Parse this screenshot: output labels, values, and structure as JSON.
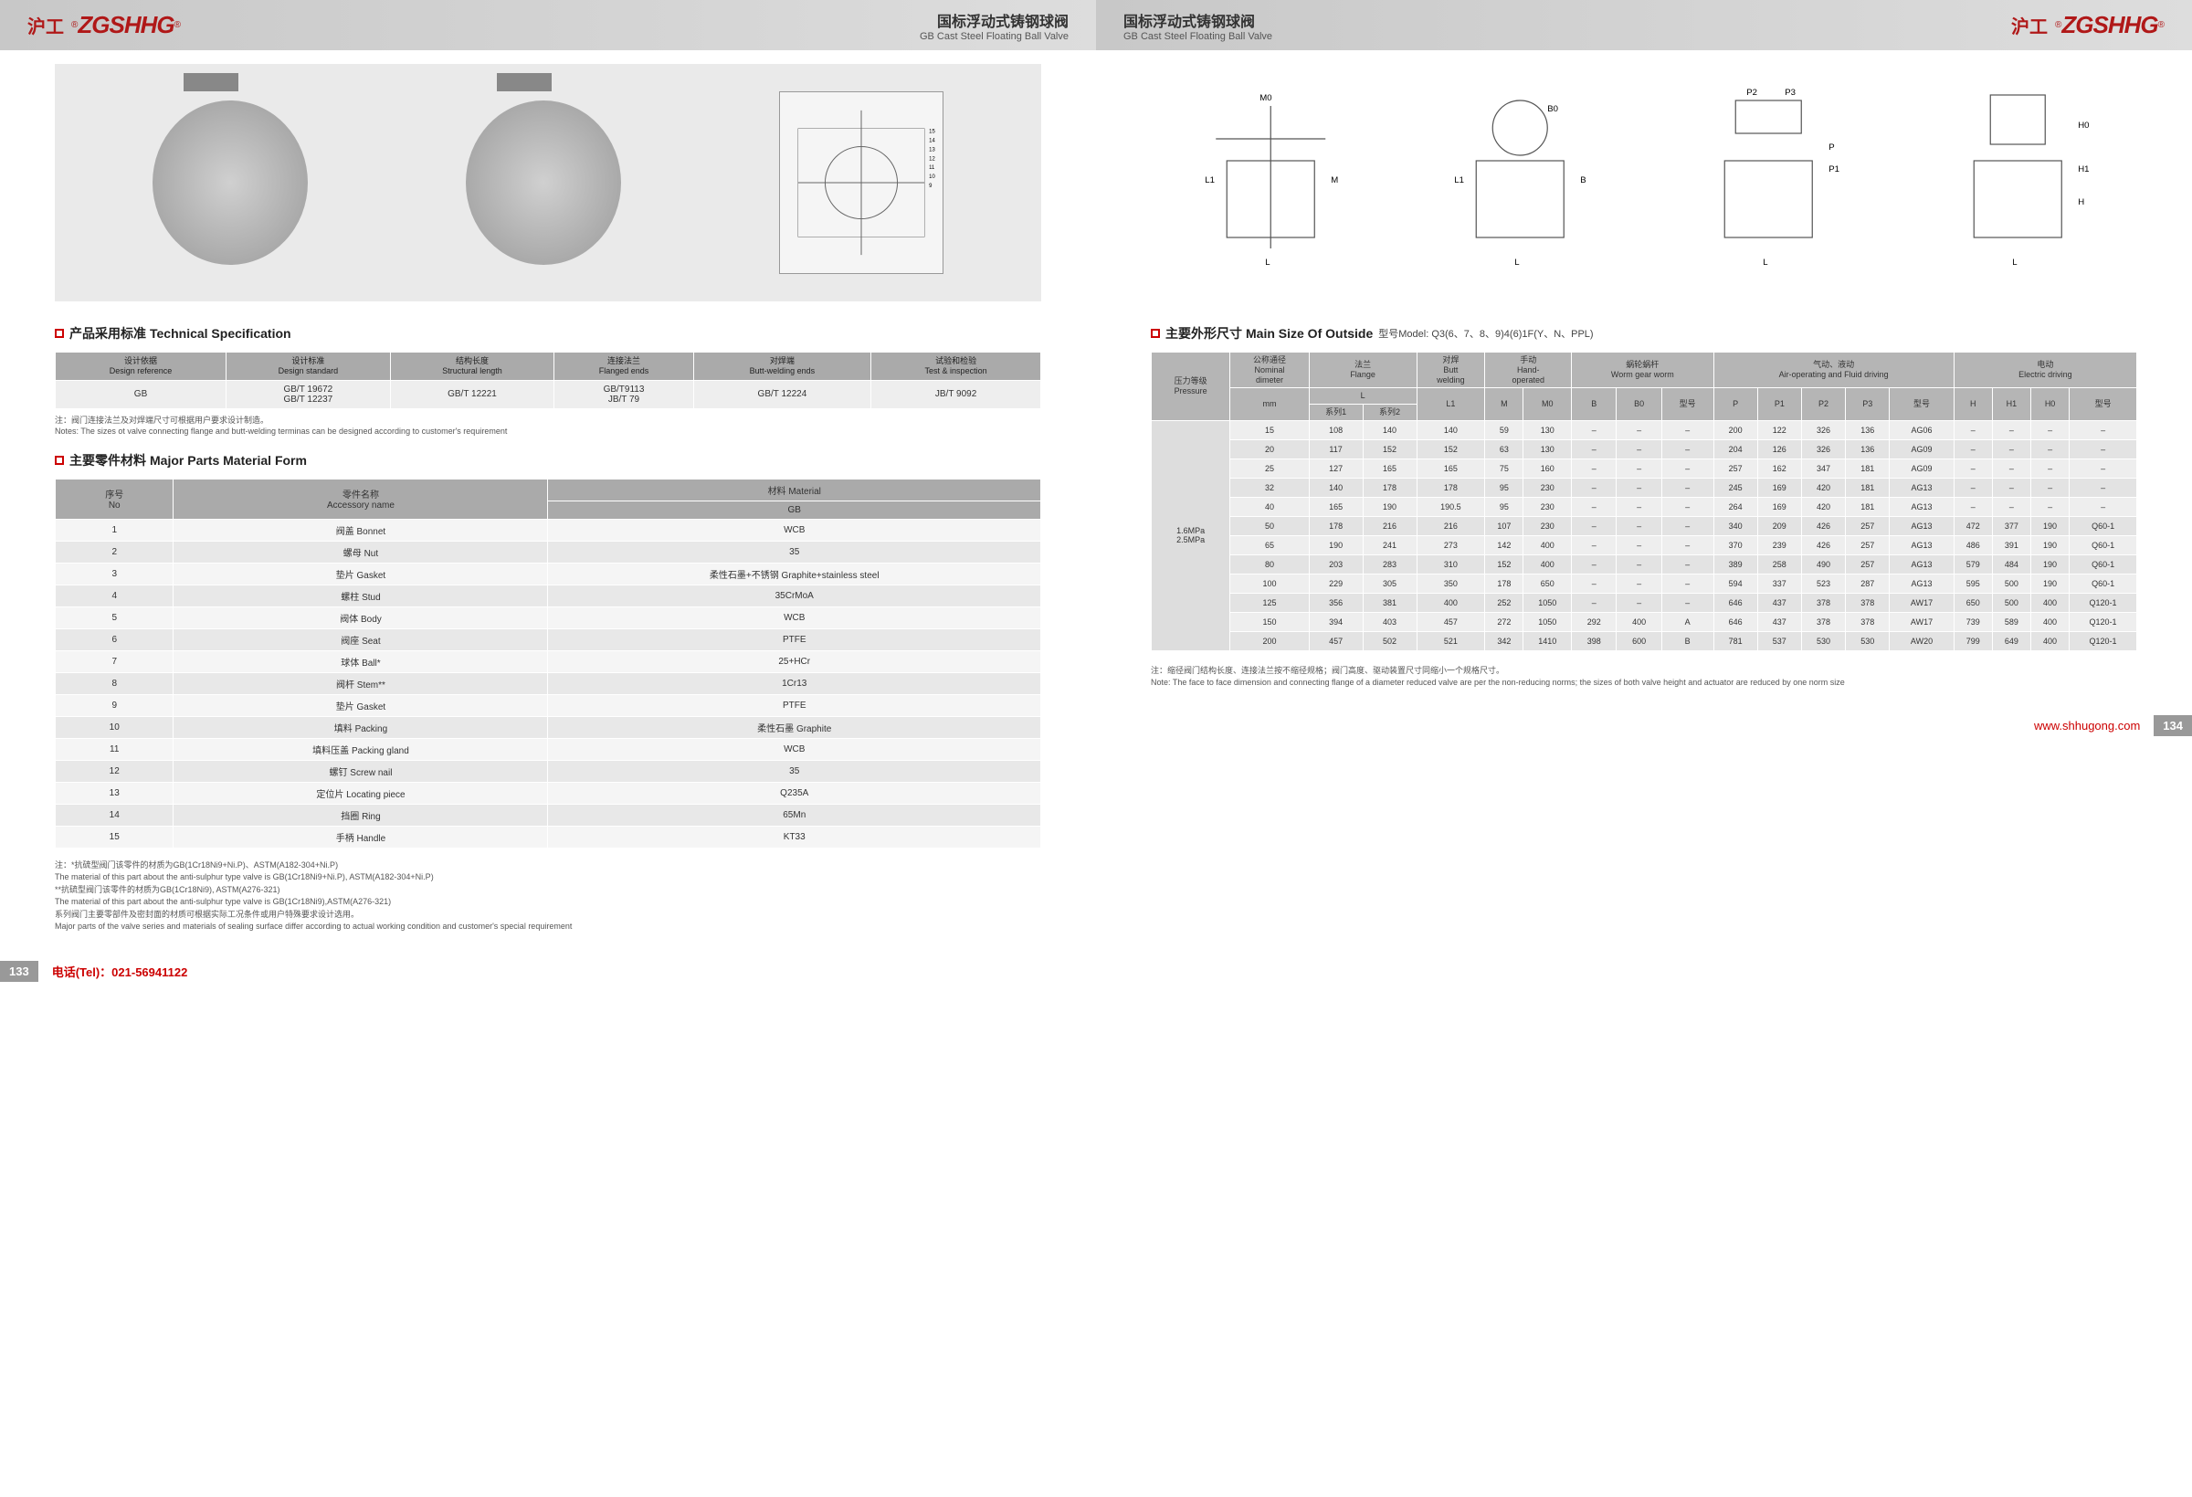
{
  "brand_cn": "沪工",
  "brand_en": "ZGSHHG",
  "product_title_cn": "国标浮动式铸钢球阀",
  "product_title_en": "GB Cast Steel Floating Ball Valve",
  "page_left_num": "133",
  "page_right_num": "134",
  "tel_label": "电话(Tel)：021-56941122",
  "website": "www.shhugong.com",
  "sect1_cn": "产品采用标准",
  "sect1_en": "Technical Specification",
  "spec_headers": [
    {
      "cn": "设计依据",
      "en": "Design reference"
    },
    {
      "cn": "设计标准",
      "en": "Design standard"
    },
    {
      "cn": "结构长度",
      "en": "Structural length"
    },
    {
      "cn": "连接法兰",
      "en": "Flanged ends"
    },
    {
      "cn": "对焊端",
      "en": "Butt-welding ends"
    },
    {
      "cn": "试验和检验",
      "en": "Test & inspection"
    }
  ],
  "spec_row": [
    "GB",
    "GB/T 19672\nGB/T 12237",
    "GB/T 12221",
    "GB/T9113\nJB/T 79",
    "GB/T 12224",
    "JB/T 9092"
  ],
  "spec_note_cn": "注：阀门连接法兰及对焊端尺寸可根据用户要求设计制造。",
  "spec_note_en": "Notes: The sizes ot valve connecting flange and butt-welding terminas can be designed according to customer's requirement",
  "sect2_cn": "主要零件材料",
  "sect2_en": "Major Parts Material Form",
  "parts_h1": "序号\nNo",
  "parts_h2": "零件名称\nAccessory name",
  "parts_h3": "材料 Material",
  "parts_h3b": "GB",
  "parts": [
    [
      "1",
      "阀盖 Bonnet",
      "WCB"
    ],
    [
      "2",
      "螺母 Nut",
      "35"
    ],
    [
      "3",
      "垫片 Gasket",
      "柔性石墨+不锈钢 Graphite+stainless steel"
    ],
    [
      "4",
      "螺柱 Stud",
      "35CrMoA"
    ],
    [
      "5",
      "阀体 Body",
      "WCB"
    ],
    [
      "6",
      "阀座 Seat",
      "PTFE"
    ],
    [
      "7",
      "球体 Ball*",
      "25+HCr"
    ],
    [
      "8",
      "阀杆 Stem**",
      "1Cr13"
    ],
    [
      "9",
      "垫片 Gasket",
      "PTFE"
    ],
    [
      "10",
      "填料 Packing",
      "柔性石墨 Graphite"
    ],
    [
      "11",
      "填料压盖 Packing gland",
      "WCB"
    ],
    [
      "12",
      "螺钉 Screw nail",
      "35"
    ],
    [
      "13",
      "定位片 Locating piece",
      "Q235A"
    ],
    [
      "14",
      "挡圈 Ring",
      "65Mn"
    ],
    [
      "15",
      "手柄 Handle",
      "KT33"
    ]
  ],
  "footnote1": "注：*抗硫型阀门该零件的材质为GB(1Cr18Ni9+Ni.P)、ASTM(A182-304+Ni.P)",
  "footnote2": "The material of this part about the anti-sulphur type valve is GB(1Cr18Ni9+Ni.P), ASTM(A182-304+Ni.P)",
  "footnote3": "**抗硫型阀门该零件的材质为GB(1Cr18Ni9), ASTM(A276-321)",
  "footnote4": "The material of this part about the anti-sulphur type valve is GB(1Cr18Ni9),ASTM(A276-321)",
  "footnote5": "系列阀门主要零部件及密封面的材质可根据实际工况条件或用户特殊要求设计选用。",
  "footnote6": "Major parts of the valve series and materials of sealing surface differ according to actual working condition and customer's special requirement",
  "sect3_cn": "主要外形尺寸",
  "sect3_en": "Main Size Of Outside",
  "sect3_model": "型号Model: Q3(6、7、8、9)4(6)1F(Y、N、PPL)",
  "size_h_pressure": "压力等级\nPressure",
  "size_h_dn": "公称通径\nNominal\ndimeter",
  "size_h_flange": "法兰\nFlange",
  "size_h_butt": "对焊\nButt\nwelding",
  "size_h_hand": "手动\nHand-\noperated",
  "size_h_worm": "蜗轮蜗杆\nWorm gear worm",
  "size_h_air": "气动、液动\nAir-operating and Fluid driving",
  "size_h_elec": "电动\nElectric driving",
  "size_sub_mm": "mm",
  "size_sub_L": "L",
  "size_sub_s1": "系列1",
  "size_sub_s2": "系列2",
  "size_sub_L1": "L1",
  "size_sub_M": "M",
  "size_sub_M0": "M0",
  "size_sub_B": "B",
  "size_sub_B0": "B0",
  "size_sub_model": "型号",
  "size_sub_P": "P",
  "size_sub_P1": "P1",
  "size_sub_P2": "P2",
  "size_sub_P3": "P3",
  "size_sub_H": "H",
  "size_sub_H1": "H1",
  "size_sub_H0": "H0",
  "pressure_val": "1.6MPa\n2.5MPa",
  "size_rows": [
    [
      "15",
      "108",
      "140",
      "140",
      "59",
      "130",
      "–",
      "–",
      "–",
      "200",
      "122",
      "326",
      "136",
      "AG06",
      "–",
      "–",
      "–",
      "–"
    ],
    [
      "20",
      "117",
      "152",
      "152",
      "63",
      "130",
      "–",
      "–",
      "–",
      "204",
      "126",
      "326",
      "136",
      "AG09",
      "–",
      "–",
      "–",
      "–"
    ],
    [
      "25",
      "127",
      "165",
      "165",
      "75",
      "160",
      "–",
      "–",
      "–",
      "257",
      "162",
      "347",
      "181",
      "AG09",
      "–",
      "–",
      "–",
      "–"
    ],
    [
      "32",
      "140",
      "178",
      "178",
      "95",
      "230",
      "–",
      "–",
      "–",
      "245",
      "169",
      "420",
      "181",
      "AG13",
      "–",
      "–",
      "–",
      "–"
    ],
    [
      "40",
      "165",
      "190",
      "190.5",
      "95",
      "230",
      "–",
      "–",
      "–",
      "264",
      "169",
      "420",
      "181",
      "AG13",
      "–",
      "–",
      "–",
      "–"
    ],
    [
      "50",
      "178",
      "216",
      "216",
      "107",
      "230",
      "–",
      "–",
      "–",
      "340",
      "209",
      "426",
      "257",
      "AG13",
      "472",
      "377",
      "190",
      "Q60-1"
    ],
    [
      "65",
      "190",
      "241",
      "273",
      "142",
      "400",
      "–",
      "–",
      "–",
      "370",
      "239",
      "426",
      "257",
      "AG13",
      "486",
      "391",
      "190",
      "Q60-1"
    ],
    [
      "80",
      "203",
      "283",
      "310",
      "152",
      "400",
      "–",
      "–",
      "–",
      "389",
      "258",
      "490",
      "257",
      "AG13",
      "579",
      "484",
      "190",
      "Q60-1"
    ],
    [
      "100",
      "229",
      "305",
      "350",
      "178",
      "650",
      "–",
      "–",
      "–",
      "594",
      "337",
      "523",
      "287",
      "AG13",
      "595",
      "500",
      "190",
      "Q60-1"
    ],
    [
      "125",
      "356",
      "381",
      "400",
      "252",
      "1050",
      "–",
      "–",
      "–",
      "646",
      "437",
      "378",
      "378",
      "AW17",
      "650",
      "500",
      "400",
      "Q120-1"
    ],
    [
      "150",
      "394",
      "403",
      "457",
      "272",
      "1050",
      "292",
      "400",
      "A",
      "646",
      "437",
      "378",
      "378",
      "AW17",
      "739",
      "589",
      "400",
      "Q120-1"
    ],
    [
      "200",
      "457",
      "502",
      "521",
      "342",
      "1410",
      "398",
      "600",
      "B",
      "781",
      "537",
      "530",
      "530",
      "AW20",
      "799",
      "649",
      "400",
      "Q120-1"
    ]
  ],
  "right_note_cn": "注：缩径阀门结构长度、连接法兰按不缩径规格；阀门高度、驱动装置尺寸同缩小一个规格尺寸。",
  "right_note_en": "Note: The face to face dimension and connecting flange of a diameter reduced valve are per the non-reducing norms; the sizes of both valve height and actuator are reduced by one norm size"
}
